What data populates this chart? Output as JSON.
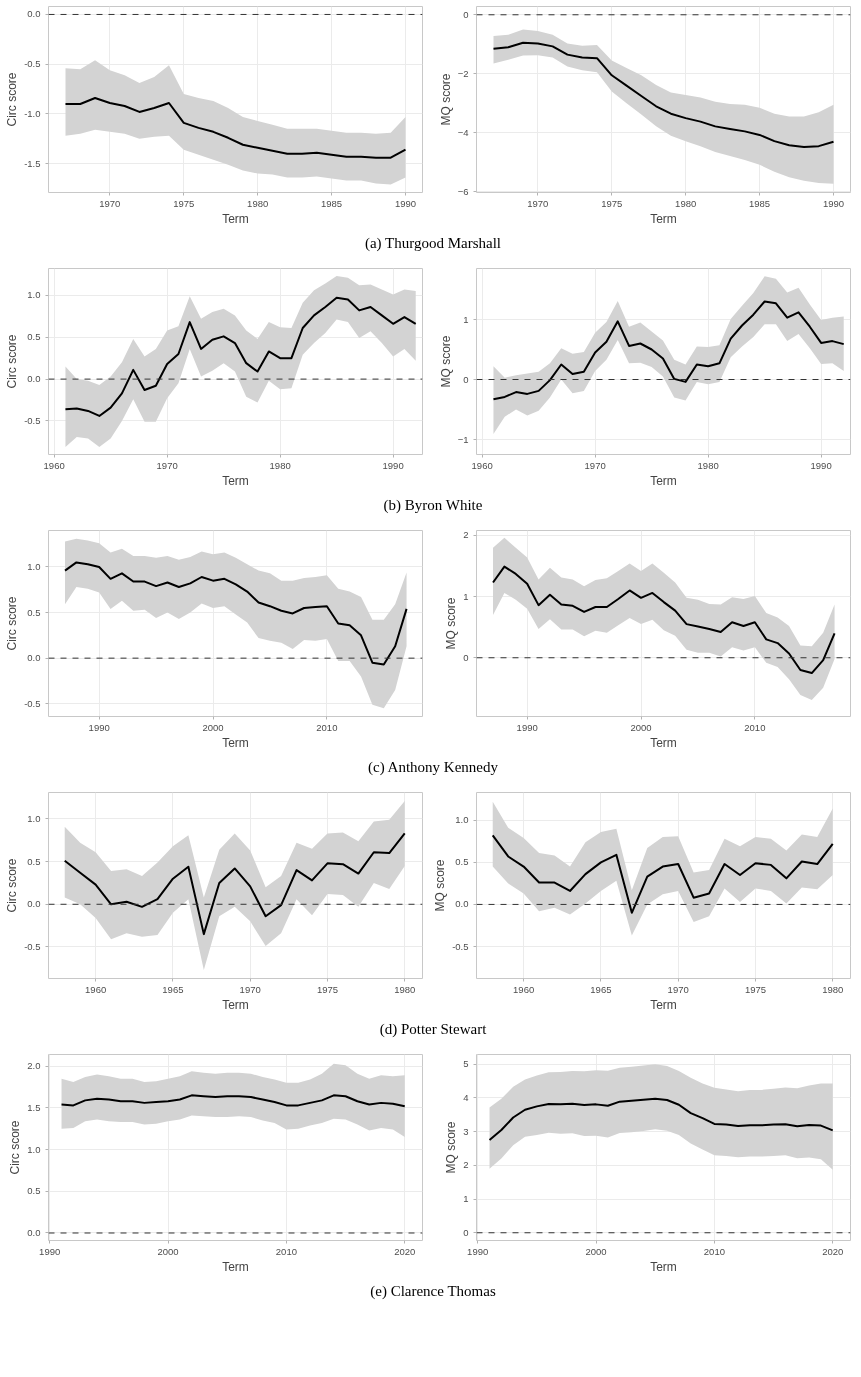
{
  "chart_data": [
    {
      "type": "line",
      "xlabel": "Term",
      "ylabel": "Circ score",
      "xlim": [
        1965.85,
        1991.15
      ],
      "ylim": [
        -1.79,
        0.08
      ],
      "xticks": [
        1970,
        1975,
        1980,
        1985,
        1990
      ],
      "yticks": [
        {
          "value": 0,
          "label": "0.0"
        },
        {
          "value": -0.5,
          "label": "-0.5"
        },
        {
          "value": -1,
          "label": "-1.0"
        },
        {
          "value": -1.5,
          "label": "-1.5"
        }
      ],
      "grid": true,
      "ref_lines": [
        {
          "axis": "y",
          "value": 0,
          "line_style": "dashed"
        }
      ],
      "annotations": [
        "(a) Thurgood Marshall"
      ],
      "x": [
        1967,
        1968,
        1969,
        1970,
        1971,
        1972,
        1973,
        1974,
        1975,
        1976,
        1977,
        1978,
        1979,
        1980,
        1981,
        1982,
        1983,
        1984,
        1985,
        1986,
        1987,
        1988,
        1989,
        1990
      ],
      "series": [
        {
          "color": "#000000",
          "values": [
            -0.9,
            -0.9,
            -0.84,
            -0.89,
            -0.92,
            -0.98,
            -0.94,
            -0.89,
            -1.09,
            -1.14,
            -1.18,
            -1.24,
            -1.31,
            -1.34,
            -1.37,
            -1.4,
            -1.4,
            -1.39,
            -1.41,
            -1.43,
            -1.43,
            -1.44,
            -1.44,
            -1.36
          ],
          "upper": [
            -0.54,
            -0.55,
            -0.46,
            -0.56,
            -0.61,
            -0.69,
            -0.63,
            -0.51,
            -0.8,
            -0.84,
            -0.87,
            -0.94,
            -1.03,
            -1.07,
            -1.11,
            -1.15,
            -1.15,
            -1.15,
            -1.17,
            -1.19,
            -1.19,
            -1.2,
            -1.19,
            -1.03
          ],
          "lower": [
            -1.22,
            -1.2,
            -1.16,
            -1.18,
            -1.2,
            -1.25,
            -1.23,
            -1.22,
            -1.36,
            -1.41,
            -1.46,
            -1.51,
            -1.57,
            -1.6,
            -1.61,
            -1.64,
            -1.64,
            -1.63,
            -1.65,
            -1.67,
            -1.67,
            -1.7,
            -1.71,
            -1.64
          ]
        }
      ]
    },
    {
      "type": "line",
      "xlabel": "Term",
      "ylabel": "MQ score",
      "xlim": [
        1965.85,
        1991.15
      ],
      "ylim": [
        -6.02,
        0.28
      ],
      "xticks": [
        1970,
        1975,
        1980,
        1985,
        1990
      ],
      "yticks": [
        0,
        -2,
        -4,
        -6
      ],
      "grid": true,
      "ref_lines": [
        {
          "axis": "y",
          "value": 0,
          "line_style": "dashed"
        }
      ],
      "x": [
        1967,
        1968,
        1969,
        1970,
        1971,
        1972,
        1973,
        1974,
        1975,
        1976,
        1977,
        1978,
        1979,
        1980,
        1981,
        1982,
        1983,
        1984,
        1985,
        1986,
        1987,
        1988,
        1989,
        1990
      ],
      "series": [
        {
          "color": "#000000",
          "values": [
            -1.15,
            -1.1,
            -0.95,
            -0.97,
            -1.07,
            -1.35,
            -1.45,
            -1.47,
            -2.05,
            -2.4,
            -2.75,
            -3.1,
            -3.35,
            -3.5,
            -3.62,
            -3.78,
            -3.87,
            -3.95,
            -4.07,
            -4.28,
            -4.42,
            -4.48,
            -4.45,
            -4.3
          ],
          "upper": [
            -0.72,
            -0.68,
            -0.5,
            -0.55,
            -0.68,
            -0.97,
            -1.05,
            -1.02,
            -1.55,
            -1.8,
            -2.05,
            -2.38,
            -2.63,
            -2.72,
            -2.8,
            -2.95,
            -3.02,
            -3.05,
            -3.15,
            -3.35,
            -3.45,
            -3.45,
            -3.3,
            -3.05
          ],
          "lower": [
            -1.65,
            -1.52,
            -1.38,
            -1.37,
            -1.45,
            -1.75,
            -1.88,
            -1.95,
            -2.6,
            -3.0,
            -3.38,
            -3.78,
            -4.1,
            -4.28,
            -4.45,
            -4.65,
            -4.78,
            -4.92,
            -5.08,
            -5.32,
            -5.5,
            -5.62,
            -5.7,
            -5.72
          ]
        }
      ]
    },
    {
      "type": "line",
      "xlabel": "Term",
      "ylabel": "Circ score",
      "xlim": [
        1959.5,
        1992.6
      ],
      "ylim": [
        -0.9,
        1.32
      ],
      "xticks": [
        1960,
        1970,
        1980,
        1990
      ],
      "yticks": [
        {
          "value": -0.5,
          "label": "-0.5"
        },
        {
          "value": 0,
          "label": "0.0"
        },
        {
          "value": 0.5,
          "label": "0.5"
        },
        {
          "value": 1,
          "label": "1.0"
        }
      ],
      "grid": true,
      "ref_lines": [
        {
          "axis": "y",
          "value": 0,
          "line_style": "dashed"
        }
      ],
      "annotations": [
        "(b) Byron White"
      ],
      "x": [
        1961,
        1962,
        1963,
        1964,
        1965,
        1966,
        1967,
        1968,
        1969,
        1970,
        1971,
        1972,
        1973,
        1974,
        1975,
        1976,
        1977,
        1978,
        1979,
        1980,
        1981,
        1982,
        1983,
        1984,
        1985,
        1986,
        1987,
        1988,
        1989,
        1990,
        1991,
        1992
      ],
      "series": [
        {
          "color": "#000000",
          "values": [
            -0.36,
            -0.35,
            -0.38,
            -0.44,
            -0.34,
            -0.17,
            0.11,
            -0.13,
            -0.08,
            0.18,
            0.3,
            0.68,
            0.36,
            0.47,
            0.51,
            0.43,
            0.19,
            0.09,
            0.33,
            0.25,
            0.25,
            0.61,
            0.76,
            0.86,
            0.97,
            0.95,
            0.82,
            0.86,
            0.76,
            0.66,
            0.74,
            0.66
          ],
          "upper": [
            0.15,
            0.0,
            -0.02,
            -0.07,
            0.03,
            0.2,
            0.48,
            0.27,
            0.36,
            0.58,
            0.63,
            0.99,
            0.72,
            0.8,
            0.84,
            0.76,
            0.58,
            0.48,
            0.68,
            0.62,
            0.61,
            0.91,
            1.06,
            1.14,
            1.23,
            1.21,
            1.12,
            1.13,
            1.07,
            1.01,
            1.07,
            1.05
          ],
          "lower": [
            -0.81,
            -0.69,
            -0.71,
            -0.81,
            -0.71,
            -0.5,
            -0.24,
            -0.51,
            -0.51,
            -0.23,
            -0.05,
            0.36,
            0.03,
            0.1,
            0.19,
            0.09,
            -0.21,
            -0.28,
            -0.02,
            -0.12,
            -0.11,
            0.29,
            0.43,
            0.55,
            0.71,
            0.68,
            0.49,
            0.57,
            0.43,
            0.27,
            0.36,
            0.22
          ]
        }
      ]
    },
    {
      "type": "line",
      "xlabel": "Term",
      "ylabel": "MQ score",
      "xlim": [
        1959.5,
        1992.6
      ],
      "ylim": [
        -1.25,
        1.85
      ],
      "xticks": [
        1960,
        1970,
        1980,
        1990
      ],
      "yticks": [
        -1,
        0,
        1
      ],
      "grid": true,
      "ref_lines": [
        {
          "axis": "y",
          "value": 0,
          "line_style": "dashed"
        }
      ],
      "x": [
        1961,
        1962,
        1963,
        1964,
        1965,
        1966,
        1967,
        1968,
        1969,
        1970,
        1971,
        1972,
        1973,
        1974,
        1975,
        1976,
        1977,
        1978,
        1979,
        1980,
        1981,
        1982,
        1983,
        1984,
        1985,
        1986,
        1987,
        1988,
        1989,
        1990,
        1991,
        1992
      ],
      "series": [
        {
          "color": "#000000",
          "values": [
            -0.33,
            -0.29,
            -0.21,
            -0.24,
            -0.19,
            -0.01,
            0.25,
            0.09,
            0.13,
            0.45,
            0.63,
            0.97,
            0.56,
            0.6,
            0.5,
            0.35,
            0.01,
            -0.04,
            0.25,
            0.22,
            0.27,
            0.68,
            0.9,
            1.08,
            1.3,
            1.27,
            1.03,
            1.12,
            0.88,
            0.61,
            0.64,
            0.59
          ],
          "upper": [
            0.22,
            0.03,
            0.07,
            0.1,
            0.13,
            0.27,
            0.52,
            0.43,
            0.46,
            0.78,
            0.96,
            1.31,
            0.88,
            0.95,
            0.8,
            0.65,
            0.33,
            0.25,
            0.55,
            0.54,
            0.57,
            1.01,
            1.23,
            1.44,
            1.72,
            1.68,
            1.45,
            1.53,
            1.25,
            0.99,
            1.03,
            1.05
          ],
          "lower": [
            -0.91,
            -0.62,
            -0.5,
            -0.6,
            -0.52,
            -0.3,
            0.0,
            -0.23,
            -0.19,
            0.14,
            0.33,
            0.66,
            0.27,
            0.28,
            0.21,
            0.05,
            -0.3,
            -0.35,
            -0.04,
            -0.08,
            -0.04,
            0.37,
            0.55,
            0.71,
            0.92,
            0.92,
            0.64,
            0.76,
            0.52,
            0.26,
            0.27,
            0.14
          ]
        }
      ]
    },
    {
      "type": "line",
      "xlabel": "Term",
      "ylabel": "Circ score",
      "xlim": [
        1985.55,
        2018.4
      ],
      "ylim": [
        -0.64,
        1.4
      ],
      "xticks": [
        1990,
        2000,
        2010
      ],
      "yticks": [
        {
          "value": -0.5,
          "label": "-0.5"
        },
        {
          "value": 0,
          "label": "0.0"
        },
        {
          "value": 0.5,
          "label": "0.5"
        },
        {
          "value": 1,
          "label": "1.0"
        }
      ],
      "grid": true,
      "ref_lines": [
        {
          "axis": "y",
          "value": 0,
          "line_style": "dashed"
        }
      ],
      "annotations": [
        "(c) Anthony Kennedy"
      ],
      "x": [
        1987,
        1988,
        1989,
        1990,
        1991,
        1992,
        1993,
        1994,
        1995,
        1996,
        1997,
        1998,
        1999,
        2000,
        2001,
        2002,
        2003,
        2004,
        2005,
        2006,
        2007,
        2008,
        2009,
        2010,
        2011,
        2012,
        2013,
        2014,
        2015,
        2016,
        2017
      ],
      "series": [
        {
          "color": "#000000",
          "values": [
            0.96,
            1.05,
            1.03,
            1.0,
            0.87,
            0.93,
            0.84,
            0.84,
            0.79,
            0.83,
            0.78,
            0.82,
            0.89,
            0.85,
            0.87,
            0.81,
            0.73,
            0.61,
            0.57,
            0.52,
            0.49,
            0.55,
            0.56,
            0.57,
            0.38,
            0.36,
            0.25,
            -0.05,
            -0.07,
            0.13,
            0.54
          ],
          "upper": [
            1.28,
            1.31,
            1.29,
            1.26,
            1.16,
            1.2,
            1.12,
            1.12,
            1.1,
            1.12,
            1.08,
            1.11,
            1.17,
            1.14,
            1.16,
            1.1,
            1.03,
            0.96,
            0.93,
            0.85,
            0.85,
            0.88,
            0.89,
            0.91,
            0.76,
            0.73,
            0.67,
            0.42,
            0.42,
            0.59,
            0.94
          ],
          "lower": [
            0.59,
            0.78,
            0.76,
            0.72,
            0.54,
            0.63,
            0.52,
            0.53,
            0.44,
            0.5,
            0.43,
            0.5,
            0.6,
            0.55,
            0.57,
            0.48,
            0.39,
            0.22,
            0.19,
            0.17,
            0.1,
            0.2,
            0.19,
            0.21,
            -0.03,
            -0.03,
            -0.2,
            -0.51,
            -0.55,
            -0.35,
            0.13
          ]
        }
      ]
    },
    {
      "type": "line",
      "xlabel": "Term",
      "ylabel": "MQ score",
      "xlim": [
        1985.55,
        2018.4
      ],
      "ylim": [
        -0.96,
        2.08
      ],
      "xticks": [
        1990,
        2000,
        2010
      ],
      "yticks": [
        0,
        1,
        2
      ],
      "grid": true,
      "ref_lines": [
        {
          "axis": "y",
          "value": 0,
          "line_style": "dashed"
        }
      ],
      "x": [
        1987,
        1988,
        1989,
        1990,
        1991,
        1992,
        1993,
        1994,
        1995,
        1996,
        1997,
        1998,
        1999,
        2000,
        2001,
        2002,
        2003,
        2004,
        2005,
        2006,
        2007,
        2008,
        2009,
        2010,
        2011,
        2012,
        2013,
        2014,
        2015,
        2016,
        2017
      ],
      "series": [
        {
          "color": "#000000",
          "values": [
            1.23,
            1.49,
            1.37,
            1.21,
            0.86,
            1.03,
            0.87,
            0.85,
            0.75,
            0.83,
            0.83,
            0.96,
            1.1,
            0.98,
            1.06,
            0.91,
            0.77,
            0.55,
            0.51,
            0.47,
            0.42,
            0.58,
            0.52,
            0.58,
            0.3,
            0.24,
            0.07,
            -0.2,
            -0.25,
            -0.04,
            0.4
          ],
          "upper": [
            1.8,
            1.96,
            1.8,
            1.64,
            1.28,
            1.47,
            1.31,
            1.28,
            1.17,
            1.27,
            1.3,
            1.42,
            1.54,
            1.42,
            1.54,
            1.39,
            1.23,
            0.98,
            0.95,
            0.88,
            0.87,
            0.99,
            0.96,
            1.01,
            0.73,
            0.66,
            0.52,
            0.2,
            0.19,
            0.41,
            0.87
          ],
          "lower": [
            0.7,
            1.06,
            0.95,
            0.8,
            0.47,
            0.63,
            0.46,
            0.46,
            0.35,
            0.44,
            0.41,
            0.53,
            0.65,
            0.55,
            0.62,
            0.45,
            0.36,
            0.13,
            0.08,
            0.08,
            0.02,
            0.17,
            0.12,
            0.17,
            -0.08,
            -0.15,
            -0.35,
            -0.61,
            -0.69,
            -0.49,
            -0.02
          ]
        }
      ]
    },
    {
      "type": "line",
      "xlabel": "Term",
      "ylabel": "Circ score",
      "xlim": [
        1956.95,
        1981.15
      ],
      "ylim": [
        -0.87,
        1.31
      ],
      "xticks": [
        1960,
        1965,
        1970,
        1975,
        1980
      ],
      "yticks": [
        {
          "value": -0.5,
          "label": "-0.5"
        },
        {
          "value": 0,
          "label": "0.0"
        },
        {
          "value": 0.5,
          "label": "0.5"
        },
        {
          "value": 1,
          "label": "1.0"
        }
      ],
      "grid": true,
      "ref_lines": [
        {
          "axis": "y",
          "value": 0,
          "line_style": "dashed"
        }
      ],
      "annotations": [
        "(d) Potter Stewart"
      ],
      "x": [
        1958,
        1959,
        1960,
        1961,
        1962,
        1963,
        1964,
        1965,
        1966,
        1967,
        1968,
        1969,
        1970,
        1971,
        1972,
        1973,
        1974,
        1975,
        1976,
        1977,
        1978,
        1979,
        1980
      ],
      "series": [
        {
          "color": "#000000",
          "values": [
            0.51,
            0.37,
            0.23,
            0.0,
            0.03,
            -0.03,
            0.06,
            0.3,
            0.44,
            -0.35,
            0.25,
            0.42,
            0.21,
            -0.14,
            -0.01,
            0.4,
            0.28,
            0.48,
            0.47,
            0.36,
            0.61,
            0.6,
            0.83
          ],
          "upper": [
            0.91,
            0.72,
            0.61,
            0.39,
            0.41,
            0.33,
            0.49,
            0.68,
            0.81,
            0.08,
            0.64,
            0.83,
            0.63,
            0.2,
            0.33,
            0.72,
            0.65,
            0.83,
            0.84,
            0.74,
            0.97,
            0.99,
            1.21
          ],
          "lower": [
            0.08,
            0.0,
            -0.16,
            -0.41,
            -0.34,
            -0.38,
            -0.36,
            -0.1,
            0.06,
            -0.77,
            -0.14,
            -0.03,
            -0.2,
            -0.49,
            -0.34,
            0.06,
            -0.13,
            0.12,
            0.11,
            -0.03,
            0.25,
            0.18,
            0.45
          ]
        }
      ]
    },
    {
      "type": "line",
      "xlabel": "Term",
      "ylabel": "MQ score",
      "xlim": [
        1956.95,
        1981.15
      ],
      "ylim": [
        -0.88,
        1.33
      ],
      "xticks": [
        1960,
        1965,
        1970,
        1975,
        1980
      ],
      "yticks": [
        {
          "value": -0.5,
          "label": "-0.5"
        },
        {
          "value": 0,
          "label": "0.0"
        },
        {
          "value": 0.5,
          "label": "0.5"
        },
        {
          "value": 1,
          "label": "1.0"
        }
      ],
      "grid": true,
      "ref_lines": [
        {
          "axis": "y",
          "value": 0,
          "line_style": "dashed"
        }
      ],
      "x": [
        1958,
        1959,
        1960,
        1961,
        1962,
        1963,
        1964,
        1965,
        1966,
        1967,
        1968,
        1969,
        1970,
        1971,
        1972,
        1973,
        1974,
        1975,
        1976,
        1977,
        1978,
        1979,
        1980
      ],
      "series": [
        {
          "color": "#000000",
          "values": [
            0.82,
            0.57,
            0.45,
            0.26,
            0.26,
            0.16,
            0.36,
            0.5,
            0.59,
            -0.1,
            0.33,
            0.45,
            0.48,
            0.08,
            0.13,
            0.48,
            0.35,
            0.49,
            0.47,
            0.31,
            0.51,
            0.48,
            0.72
          ],
          "upper": [
            1.22,
            0.91,
            0.79,
            0.61,
            0.58,
            0.45,
            0.74,
            0.86,
            0.9,
            0.17,
            0.67,
            0.8,
            0.81,
            0.38,
            0.41,
            0.78,
            0.69,
            0.8,
            0.78,
            0.64,
            0.83,
            0.8,
            1.14
          ],
          "lower": [
            0.45,
            0.25,
            0.13,
            -0.08,
            -0.04,
            -0.12,
            0.01,
            0.16,
            0.28,
            -0.37,
            0.0,
            0.12,
            0.16,
            -0.21,
            -0.14,
            0.19,
            0.03,
            0.19,
            0.16,
            0.01,
            0.2,
            0.18,
            0.35
          ]
        }
      ]
    },
    {
      "type": "line",
      "xlabel": "Term",
      "ylabel": "Circ score",
      "xlim": [
        1989.9,
        2021.5
      ],
      "ylim": [
        -0.09,
        2.14
      ],
      "xticks": [
        1990,
        2000,
        2010,
        2020
      ],
      "yticks": [
        {
          "value": 0,
          "label": "0.0"
        },
        {
          "value": 0.5,
          "label": "0.5"
        },
        {
          "value": 1,
          "label": "1.0"
        },
        {
          "value": 1.5,
          "label": "1.5"
        },
        {
          "value": 2,
          "label": "2.0"
        }
      ],
      "grid": true,
      "ref_lines": [
        {
          "axis": "y",
          "value": 0,
          "line_style": "dashed"
        }
      ],
      "annotations": [
        "(e) Clarence Thomas"
      ],
      "x": [
        1991,
        1992,
        1993,
        1994,
        1995,
        1996,
        1997,
        1998,
        1999,
        2000,
        2001,
        2002,
        2003,
        2004,
        2005,
        2006,
        2007,
        2008,
        2009,
        2010,
        2011,
        2012,
        2013,
        2014,
        2015,
        2016,
        2017,
        2018,
        2019,
        2020
      ],
      "series": [
        {
          "color": "#000000",
          "values": [
            1.54,
            1.53,
            1.59,
            1.61,
            1.6,
            1.58,
            1.58,
            1.56,
            1.57,
            1.58,
            1.6,
            1.65,
            1.64,
            1.63,
            1.64,
            1.64,
            1.63,
            1.6,
            1.57,
            1.53,
            1.53,
            1.56,
            1.59,
            1.65,
            1.64,
            1.58,
            1.54,
            1.56,
            1.55,
            1.52
          ],
          "upper": [
            1.85,
            1.81,
            1.87,
            1.9,
            1.88,
            1.85,
            1.85,
            1.81,
            1.82,
            1.85,
            1.88,
            1.94,
            1.92,
            1.91,
            1.92,
            1.92,
            1.91,
            1.87,
            1.84,
            1.8,
            1.8,
            1.84,
            1.91,
            2.03,
            2.01,
            1.91,
            1.85,
            1.89,
            1.88,
            1.89
          ],
          "lower": [
            1.25,
            1.26,
            1.34,
            1.36,
            1.34,
            1.33,
            1.33,
            1.3,
            1.31,
            1.34,
            1.36,
            1.41,
            1.4,
            1.39,
            1.39,
            1.4,
            1.39,
            1.35,
            1.32,
            1.24,
            1.25,
            1.29,
            1.32,
            1.37,
            1.36,
            1.3,
            1.23,
            1.26,
            1.24,
            1.15
          ]
        }
      ]
    },
    {
      "type": "line",
      "xlabel": "Term",
      "ylabel": "MQ score",
      "xlim": [
        1989.9,
        2021.5
      ],
      "ylim": [
        -0.23,
        5.29
      ],
      "xticks": [
        1990,
        2000,
        2010,
        2020
      ],
      "yticks": [
        0,
        1,
        2,
        3,
        4,
        5
      ],
      "grid": true,
      "ref_lines": [
        {
          "axis": "y",
          "value": 0,
          "line_style": "dashed"
        }
      ],
      "x": [
        1991,
        1992,
        1993,
        1994,
        1995,
        1996,
        1997,
        1998,
        1999,
        2000,
        2001,
        2002,
        2003,
        2004,
        2005,
        2006,
        2007,
        2008,
        2009,
        2010,
        2011,
        2012,
        2013,
        2014,
        2015,
        2016,
        2017,
        2018,
        2019,
        2020
      ],
      "series": [
        {
          "color": "#000000",
          "values": [
            2.75,
            3.05,
            3.42,
            3.65,
            3.75,
            3.82,
            3.81,
            3.83,
            3.79,
            3.81,
            3.77,
            3.89,
            3.92,
            3.95,
            3.98,
            3.94,
            3.8,
            3.55,
            3.4,
            3.23,
            3.21,
            3.17,
            3.19,
            3.19,
            3.21,
            3.22,
            3.16,
            3.2,
            3.18,
            3.04
          ],
          "upper": [
            3.72,
            3.98,
            4.33,
            4.55,
            4.67,
            4.76,
            4.77,
            4.8,
            4.79,
            4.82,
            4.81,
            4.9,
            4.93,
            4.96,
            5.0,
            4.95,
            4.8,
            4.6,
            4.43,
            4.3,
            4.25,
            4.2,
            4.24,
            4.24,
            4.27,
            4.31,
            4.29,
            4.37,
            4.43,
            4.43
          ],
          "lower": [
            1.9,
            2.2,
            2.6,
            2.85,
            2.9,
            2.97,
            2.94,
            2.95,
            2.87,
            2.88,
            2.83,
            2.96,
            2.98,
            3.02,
            3.07,
            3.03,
            2.9,
            2.65,
            2.47,
            2.3,
            2.28,
            2.24,
            2.26,
            2.26,
            2.28,
            2.3,
            2.21,
            2.23,
            2.18,
            1.87
          ]
        }
      ]
    }
  ]
}
